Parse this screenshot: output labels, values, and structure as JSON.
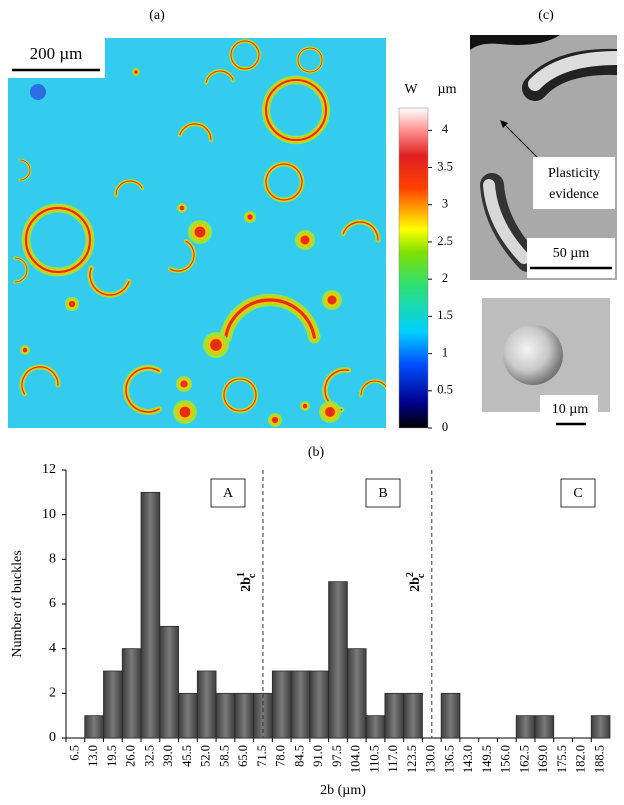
{
  "panel_labels": {
    "a": "(a)",
    "b": "(b)",
    "c": "(c)"
  },
  "panel_a": {
    "scale_bar": "200 µm",
    "colorbar": {
      "title": "W",
      "unit": "µm",
      "lim": [
        0,
        4.3
      ],
      "ticks": [
        0,
        0.5,
        1,
        1.5,
        2,
        2.5,
        3,
        3.5,
        4
      ]
    }
  },
  "panel_c": {
    "annotation": [
      "Plasticity",
      "evidence"
    ],
    "scale_bar_top": "50 µm",
    "scale_bar_bottom": "10 µm"
  },
  "chart_data": {
    "type": "bar",
    "x_label": "2b (µm)",
    "y_label": "Number of buckles",
    "categories": [
      "6.5",
      "13.0",
      "19.5",
      "26.0",
      "32.5",
      "39.0",
      "45.5",
      "52.0",
      "58.5",
      "65.0",
      "71.5",
      "78.0",
      "84.5",
      "91.0",
      "97.5",
      "104.0",
      "110.5",
      "117.0",
      "123.5",
      "130.0",
      "136.5",
      "143.0",
      "149.5",
      "156.0",
      "162.5",
      "169.0",
      "175.5",
      "182.0",
      "188.5"
    ],
    "values": [
      0,
      1,
      3,
      4,
      11,
      5,
      2,
      3,
      2,
      2,
      2,
      3,
      3,
      3,
      7,
      4,
      1,
      2,
      2,
      0,
      2,
      0,
      0,
      0,
      1,
      1,
      0,
      0,
      1
    ],
    "color": "#595959",
    "ylim": [
      0,
      12
    ],
    "yticks": [
      0,
      2,
      4,
      6,
      8,
      10,
      12
    ],
    "regions": [
      "A",
      "B",
      "C"
    ],
    "thresholds": [
      {
        "x": 71.5,
        "label": "2b",
        "sub": "c",
        "sup": "1"
      },
      {
        "x": 130.0,
        "label": "2b",
        "sub": "c",
        "sup": "2"
      }
    ]
  }
}
